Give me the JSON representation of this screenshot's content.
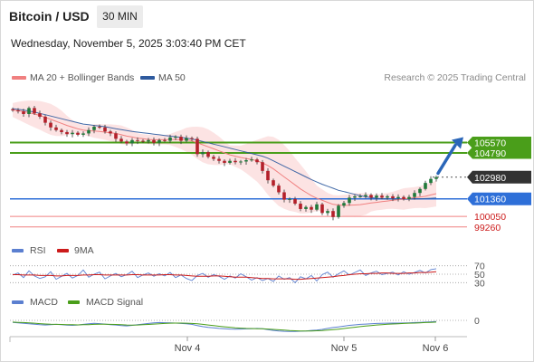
{
  "header": {
    "title": "Bitcoin / USD",
    "interval": "30 MIN",
    "datetime": "Wednesday, November 5, 2025 3:03:40 PM CET",
    "copyright": "Research © 2025 Trading Central"
  },
  "colors": {
    "ma20": "#f08080",
    "ma50": "#2e5a9e",
    "bollinger_fill": "#fbd9d9",
    "candle_up": "#1f7a3a",
    "candle_down": "#b3202a",
    "resistance": "#4a9e1a",
    "current": "#333333",
    "pivot": "#2e6fd8",
    "support": "#f08080",
    "rsi": "#5b7fd0",
    "rsi_ma": "#cc1b1b",
    "macd": "#5b7fd0",
    "macd_signal": "#4a9e1a",
    "arrow": "#2a66b8"
  },
  "chart_data": [
    {
      "type": "candlestick",
      "title": "Bitcoin / USD",
      "interval": "30 MIN",
      "legend": [
        "MA 20 + Bollinger Bands",
        "MA 50"
      ],
      "x_ticks": [
        "Nov 4",
        "Nov 5",
        "Nov 6"
      ],
      "ylim": [
        98500,
        110000
      ],
      "levels": [
        {
          "value": 105570,
          "label": "105570",
          "kind": "resistance"
        },
        {
          "value": 104790,
          "label": "104790",
          "kind": "resistance"
        },
        {
          "value": 102980,
          "label": "102980",
          "kind": "current"
        },
        {
          "value": 101360,
          "label": "101360",
          "kind": "pivot"
        },
        {
          "value": 100050,
          "label": "100050",
          "kind": "support"
        },
        {
          "value": 99260,
          "label": "99260",
          "kind": "support"
        }
      ],
      "arrow": {
        "direction": "up",
        "from": 103000,
        "to": 105500
      },
      "price_close": [
        107980,
        107900,
        107700,
        108150,
        107750,
        107500,
        107050,
        106700,
        106500,
        106350,
        106200,
        106300,
        106150,
        106250,
        106500,
        106750,
        106700,
        106400,
        106250,
        105850,
        105650,
        105500,
        105750,
        105700,
        105650,
        105750,
        105550,
        105750,
        105700,
        105950,
        106000,
        105700,
        105900,
        105850,
        104700,
        104850,
        104500,
        104350,
        104200,
        104050,
        104200,
        104100,
        104150,
        104250,
        104300,
        104100,
        103450,
        102750,
        102350,
        101850,
        101300,
        101350,
        101000,
        100600,
        100750,
        100550,
        100950,
        100300,
        100450,
        100000,
        100850,
        101050,
        101450,
        101550,
        101550,
        101650,
        101450,
        101600,
        101450,
        101550,
        101400,
        101500,
        101350,
        101500,
        101800,
        102100,
        102550,
        102850,
        102980
      ],
      "ma20": [
        108000,
        107950,
        107880,
        107800,
        107700,
        107600,
        107450,
        107300,
        107150,
        107000,
        106850,
        106720,
        106600,
        106500,
        106450,
        106430,
        106400,
        106350,
        106300,
        106250,
        106150,
        106050,
        105980,
        105900,
        105850,
        105800,
        105780,
        105780,
        105780,
        105800,
        105800,
        105790,
        105780,
        105700,
        105550,
        105400,
        105250,
        105100,
        104950,
        104800,
        104650,
        104550,
        104450,
        104380,
        104300,
        104200,
        104050,
        103850,
        103600,
        103300,
        103000,
        102700,
        102400,
        102100,
        101850,
        101600,
        101400,
        101250,
        101100,
        100950,
        100900,
        100870,
        100880,
        100900,
        100930,
        100980,
        101050,
        101100,
        101150,
        101200,
        101250,
        101300,
        101350,
        101400,
        101450,
        101500,
        101550,
        101650,
        101750
      ],
      "ma50": [
        108100,
        108050,
        108000,
        107920,
        107850,
        107750,
        107650,
        107550,
        107450,
        107350,
        107250,
        107150,
        107050,
        106950,
        106900,
        106850,
        106800,
        106750,
        106680,
        106600,
        106530,
        106470,
        106400,
        106350,
        106300,
        106250,
        106200,
        106150,
        106100,
        106050,
        106000,
        105950,
        105900,
        105830,
        105750,
        105650,
        105550,
        105450,
        105350,
        105250,
        105150,
        105050,
        104950,
        104850,
        104750,
        104650,
        104550,
        104400,
        104200,
        104000,
        103800,
        103600,
        103400,
        103200,
        103000,
        102800,
        102620,
        102450,
        102300,
        102150,
        102000,
        101900,
        101800,
        101700,
        101600,
        101520,
        101450,
        101400,
        101370,
        101350,
        101340,
        101330,
        101330,
        101340,
        101350,
        101360,
        101380,
        101400,
        101420
      ]
    },
    {
      "type": "line",
      "title": "RSI",
      "legend": [
        "RSI",
        "9MA"
      ],
      "y_ticks": [
        "70",
        "50",
        "30"
      ],
      "ylim": [
        20,
        80
      ],
      "rsi": [
        48,
        53,
        42,
        58,
        46,
        40,
        44,
        56,
        38,
        45,
        52,
        41,
        47,
        60,
        43,
        50,
        55,
        39,
        46,
        52,
        44,
        49,
        57,
        42,
        48,
        53,
        45,
        51,
        46,
        54,
        42,
        48,
        40,
        35,
        47,
        52,
        43,
        49,
        45,
        38,
        46,
        41,
        51,
        44,
        36,
        42,
        35,
        40,
        33,
        46,
        38,
        42,
        30,
        44,
        39,
        47,
        34,
        49,
        55,
        43,
        51,
        58,
        48,
        54,
        60,
        47,
        53,
        57,
        49,
        52,
        55,
        48,
        56,
        50,
        54,
        59,
        53,
        61,
        63
      ],
      "ma9": [
        49,
        49,
        48,
        48,
        48,
        47,
        47,
        47,
        46,
        46,
        47,
        47,
        47,
        48,
        48,
        49,
        49,
        48,
        48,
        48,
        48,
        48,
        49,
        49,
        48,
        48,
        48,
        48,
        49,
        49,
        48,
        48,
        47,
        46,
        45,
        45,
        45,
        46,
        46,
        45,
        44,
        43,
        43,
        43,
        42,
        41,
        40,
        40,
        39,
        39,
        39,
        39,
        38,
        38,
        39,
        40,
        41,
        42,
        43,
        44,
        46,
        47,
        49,
        50,
        51,
        51,
        52,
        52,
        53,
        53,
        52,
        52,
        52,
        53,
        53,
        54,
        54,
        55,
        56
      ]
    },
    {
      "type": "line",
      "title": "MACD",
      "legend": [
        "MACD",
        "MACD Signal"
      ],
      "y_ticks": [
        "0"
      ],
      "ylim": [
        -1,
        1
      ],
      "macd": [
        0.05,
        0.02,
        -0.02,
        -0.05,
        -0.09,
        -0.13,
        -0.15,
        -0.12,
        -0.1,
        -0.12,
        -0.16,
        -0.18,
        -0.15,
        -0.1,
        -0.05,
        -0.02,
        -0.04,
        -0.08,
        -0.12,
        -0.15,
        -0.2,
        -0.22,
        -0.18,
        -0.12,
        -0.08,
        -0.03,
        0.02,
        0.04,
        0.03,
        0.02,
        0.0,
        -0.03,
        -0.06,
        -0.1,
        -0.2,
        -0.28,
        -0.34,
        -0.38,
        -0.42,
        -0.45,
        -0.47,
        -0.48,
        -0.47,
        -0.46,
        -0.44,
        -0.42,
        -0.45,
        -0.52,
        -0.58,
        -0.62,
        -0.65,
        -0.66,
        -0.66,
        -0.64,
        -0.62,
        -0.58,
        -0.55,
        -0.5,
        -0.42,
        -0.35,
        -0.3,
        -0.24,
        -0.18,
        -0.14,
        -0.1,
        -0.08,
        -0.05,
        -0.03,
        -0.02,
        -0.01,
        0.0,
        0.0,
        0.01,
        0.02,
        0.04,
        0.06,
        0.08,
        0.1,
        0.12
      ],
      "signal": [
        0.08,
        0.06,
        0.04,
        0.02,
        -0.01,
        -0.04,
        -0.07,
        -0.09,
        -0.1,
        -0.11,
        -0.12,
        -0.13,
        -0.14,
        -0.13,
        -0.12,
        -0.1,
        -0.09,
        -0.09,
        -0.1,
        -0.11,
        -0.13,
        -0.15,
        -0.16,
        -0.15,
        -0.13,
        -0.11,
        -0.08,
        -0.05,
        -0.03,
        -0.01,
        0.0,
        0.0,
        -0.01,
        -0.03,
        -0.06,
        -0.1,
        -0.15,
        -0.2,
        -0.25,
        -0.29,
        -0.33,
        -0.37,
        -0.4,
        -0.42,
        -0.43,
        -0.44,
        -0.45,
        -0.47,
        -0.5,
        -0.53,
        -0.56,
        -0.59,
        -0.61,
        -0.62,
        -0.63,
        -0.62,
        -0.61,
        -0.59,
        -0.56,
        -0.52,
        -0.48,
        -0.43,
        -0.38,
        -0.33,
        -0.28,
        -0.23,
        -0.19,
        -0.15,
        -0.12,
        -0.09,
        -0.07,
        -0.05,
        -0.03,
        -0.01,
        0.0,
        0.02,
        0.04,
        0.06,
        0.08
      ]
    }
  ]
}
